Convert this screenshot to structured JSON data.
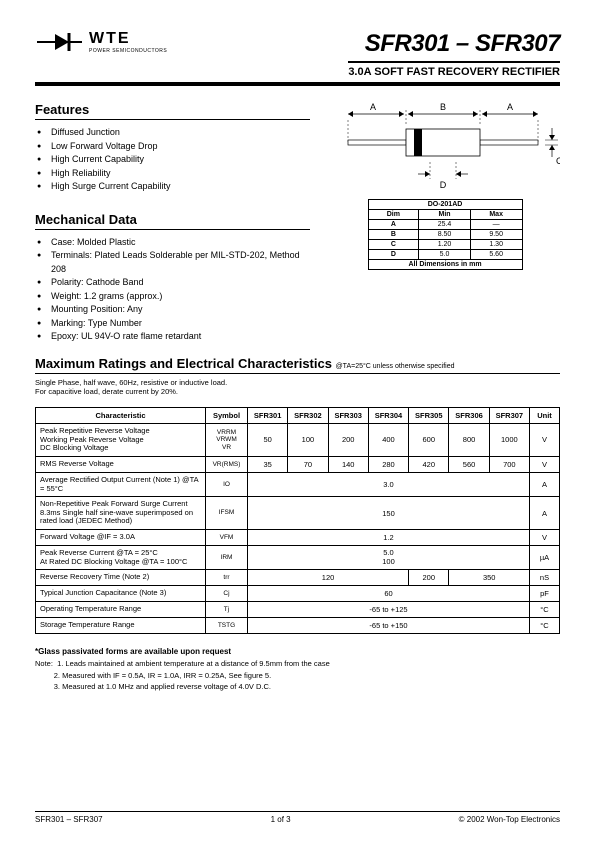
{
  "header": {
    "logo_main": "WTE",
    "logo_sub": "POWER SEMICONDUCTORS",
    "part_title": "SFR301 – SFR307",
    "subtitle": "3.0A SOFT FAST RECOVERY RECTIFIER"
  },
  "features": {
    "heading": "Features",
    "items": [
      "Diffused Junction",
      "Low Forward Voltage Drop",
      "High Current Capability",
      "High Reliability",
      "High Surge Current Capability"
    ]
  },
  "mechanical": {
    "heading": "Mechanical Data",
    "items": [
      "Case: Molded Plastic",
      "Terminals: Plated Leads Solderable per MIL-STD-202, Method 208",
      "Polarity: Cathode Band",
      "Weight: 1.2 grams (approx.)",
      "Mounting Position: Any",
      "Marking: Type Number",
      "Epoxy: UL 94V-O rate flame retardant"
    ]
  },
  "dimensions": {
    "package": "DO-201AD",
    "cols": [
      "Dim",
      "Min",
      "Max"
    ],
    "rows": [
      [
        "A",
        "25.4",
        "—"
      ],
      [
        "B",
        "8.50",
        "9.50"
      ],
      [
        "C",
        "1.20",
        "1.30"
      ],
      [
        "D",
        "5.0",
        "5.60"
      ]
    ],
    "footer": "All Dimensions in mm"
  },
  "ratings": {
    "heading": "Maximum Ratings and Electrical Characteristics",
    "cond": "@TA=25°C unless otherwise specified",
    "load_note1": "Single Phase, half wave, 60Hz, resistive or inductive load.",
    "load_note2": "For capacitive load, derate current by 20%.",
    "col_headers": [
      "Characteristic",
      "Symbol",
      "SFR301",
      "SFR302",
      "SFR303",
      "SFR304",
      "SFR305",
      "SFR306",
      "SFR307",
      "Unit"
    ],
    "rows": [
      {
        "char": [
          "Peak Repetitive Reverse Voltage",
          "Working Peak Reverse Voltage",
          "DC Blocking Voltage"
        ],
        "sym": [
          "VRRM",
          "VRWM",
          "VR"
        ],
        "vals": [
          "50",
          "100",
          "200",
          "400",
          "600",
          "800",
          "1000"
        ],
        "unit": "V"
      },
      {
        "char": [
          "RMS Reverse Voltage"
        ],
        "sym": [
          "VR(RMS)"
        ],
        "vals": [
          "35",
          "70",
          "140",
          "280",
          "420",
          "560",
          "700"
        ],
        "unit": "V"
      },
      {
        "char": [
          "Average Rectified Output Current     (Note 1)                                  @TA = 55°C"
        ],
        "sym": [
          "IO"
        ],
        "span": "3.0",
        "unit": "A"
      },
      {
        "char": [
          "Non-Repetitive Peak Forward Surge Current 8.3ms Single half sine-wave superimposed on rated load (JEDEC Method)"
        ],
        "sym": [
          "IFSM"
        ],
        "span": "150",
        "unit": "A"
      },
      {
        "char": [
          "Forward Voltage                    @IF = 3.0A"
        ],
        "sym": [
          "VFM"
        ],
        "span": "1.2",
        "unit": "V"
      },
      {
        "char": [
          "Peak Reverse Current         @TA = 25°C",
          "At Rated DC Blocking Voltage    @TA = 100°C"
        ],
        "sym": [
          "IRM"
        ],
        "span2": [
          "5.0",
          "100"
        ],
        "unit": "µA"
      },
      {
        "char": [
          "Reverse Recovery Time (Note 2)"
        ],
        "sym": [
          "trr"
        ],
        "merge3": {
          "v1": "120",
          "v2": "200",
          "v3": "350"
        },
        "unit": "nS"
      },
      {
        "char": [
          "Typical Junction Capacitance (Note 3)"
        ],
        "sym": [
          "Cj"
        ],
        "span": "60",
        "unit": "pF"
      },
      {
        "char": [
          "Operating Temperature Range"
        ],
        "sym": [
          "Tj"
        ],
        "span": "-65 to +125",
        "unit": "°C"
      },
      {
        "char": [
          "Storage Temperature Range"
        ],
        "sym": [
          "TSTG"
        ],
        "span": "-65 to +150",
        "unit": "°C"
      }
    ]
  },
  "notes": {
    "glass": "*Glass passivated forms are available upon request",
    "lines": [
      "Note:  1. Leads maintained at ambient temperature at a distance of 9.5mm from the case",
      "         2. Measured with IF = 0.5A, IR = 1.0A, IRR = 0.25A, See figure 5.",
      "         3. Measured at 1.0 MHz and applied reverse voltage of 4.0V D.C."
    ]
  },
  "footer": {
    "left": "SFR301 – SFR307",
    "center": "1  of  3",
    "right": "© 2002 Won-Top Electronics"
  }
}
